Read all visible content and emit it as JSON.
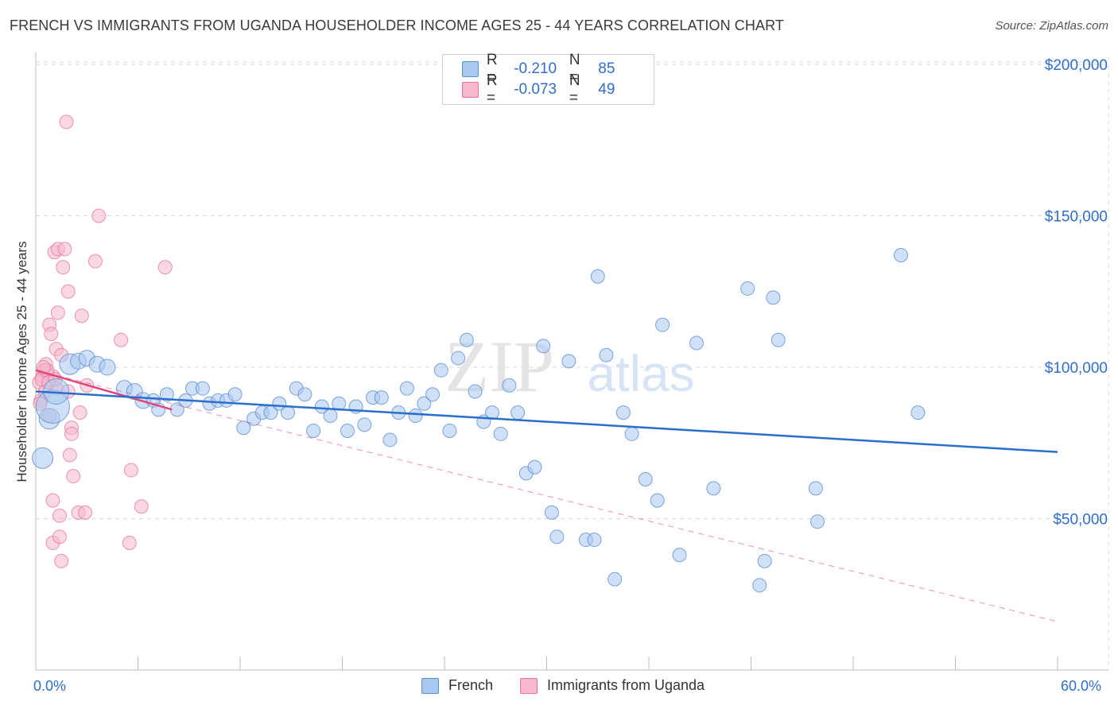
{
  "header": {
    "title": "FRENCH VS IMMIGRANTS FROM UGANDA HOUSEHOLDER INCOME AGES 25 - 44 YEARS CORRELATION CHART",
    "source": "Source: ZipAtlas.com"
  },
  "watermark": {
    "zip": "ZIP",
    "atlas": "atlas"
  },
  "legend_top": {
    "rows": [
      {
        "r_label": "R =",
        "r_value": "-0.210",
        "n_label": "N =",
        "n_value": "85",
        "color": "#a9c8f0"
      },
      {
        "r_label": "R =",
        "r_value": "-0.073",
        "n_label": "N =",
        "n_value": "49",
        "color": "#f6b8cb"
      }
    ]
  },
  "legend_bottom": {
    "french": "French",
    "uganda": "Immigrants from Uganda"
  },
  "axes": {
    "x_min_label": "0.0%",
    "x_max_label": "60.0%",
    "y_title": "Householder Income Ages 25 - 44 years"
  },
  "colors": {
    "blue_fill": "#a9c8f0",
    "blue_stroke": "#5b8fd4",
    "blue_line": "#2b6fce",
    "pink_fill": "#f6b8cb",
    "pink_stroke": "#e67399",
    "pink_line": "#e0477a",
    "grid": "#d8d8d8",
    "tick_label": "#2f6fc9"
  },
  "chart_data": {
    "type": "scatter",
    "title": "FRENCH VS IMMIGRANTS FROM UGANDA HOUSEHOLDER INCOME AGES 25 - 44 YEARS CORRELATION CHART",
    "xlabel": "",
    "ylabel": "Householder Income Ages 25 - 44 years",
    "xlim": [
      0,
      60
    ],
    "ylim": [
      0,
      210000
    ],
    "y_ticks": [
      {
        "value": 50000,
        "label": "$50,000"
      },
      {
        "value": 100000,
        "label": "$100,000"
      },
      {
        "value": 150000,
        "label": "$150,000"
      },
      {
        "value": 200000,
        "label": "$200,000"
      }
    ],
    "x_tick_values": [
      0,
      6,
      12,
      18,
      24,
      30,
      36,
      42,
      48,
      54,
      60
    ],
    "grid": true,
    "series": [
      {
        "name": "French",
        "r": -0.21,
        "n": 85,
        "trend": {
          "x0": 0,
          "y0": 92000,
          "x1": 60,
          "y1": 72000,
          "style": "solid"
        },
        "points": [
          [
            0.4,
            70000,
            3
          ],
          [
            0.8,
            83000,
            3
          ],
          [
            1.0,
            87000,
            5
          ],
          [
            1.2,
            92000,
            4
          ],
          [
            2.0,
            101000,
            3
          ],
          [
            2.5,
            102000,
            2
          ],
          [
            3.0,
            103000,
            2
          ],
          [
            3.6,
            101000,
            2
          ],
          [
            4.2,
            100000,
            2
          ],
          [
            5.2,
            93000,
            2
          ],
          [
            5.8,
            92000,
            2
          ],
          [
            6.3,
            89000,
            2
          ],
          [
            6.9,
            89000,
            1
          ],
          [
            7.2,
            86000,
            1
          ],
          [
            7.7,
            91000,
            1
          ],
          [
            8.3,
            86000,
            1
          ],
          [
            8.8,
            89000,
            1
          ],
          [
            9.2,
            93000,
            1
          ],
          [
            9.8,
            93000,
            1
          ],
          [
            10.2,
            88000,
            1
          ],
          [
            10.7,
            89000,
            1
          ],
          [
            11.2,
            89000,
            1
          ],
          [
            11.7,
            91000,
            1
          ],
          [
            12.2,
            80000,
            1
          ],
          [
            12.8,
            83000,
            1
          ],
          [
            13.3,
            85000,
            1
          ],
          [
            13.8,
            85000,
            1
          ],
          [
            14.3,
            88000,
            1
          ],
          [
            14.8,
            85000,
            1
          ],
          [
            15.3,
            93000,
            1
          ],
          [
            15.8,
            91000,
            1
          ],
          [
            16.3,
            79000,
            1
          ],
          [
            16.8,
            87000,
            1
          ],
          [
            17.3,
            84000,
            1
          ],
          [
            17.8,
            88000,
            1
          ],
          [
            18.3,
            79000,
            1
          ],
          [
            18.8,
            87000,
            1
          ],
          [
            19.3,
            81000,
            1
          ],
          [
            19.8,
            90000,
            1
          ],
          [
            20.3,
            90000,
            1
          ],
          [
            20.8,
            76000,
            1
          ],
          [
            21.3,
            85000,
            1
          ],
          [
            21.8,
            93000,
            1
          ],
          [
            22.3,
            84000,
            1
          ],
          [
            22.8,
            88000,
            1
          ],
          [
            23.3,
            91000,
            1
          ],
          [
            23.8,
            99000,
            1
          ],
          [
            24.3,
            79000,
            1
          ],
          [
            24.8,
            103000,
            1
          ],
          [
            25.3,
            109000,
            1
          ],
          [
            25.8,
            92000,
            1
          ],
          [
            26.3,
            82000,
            1
          ],
          [
            26.8,
            85000,
            1
          ],
          [
            27.3,
            78000,
            1
          ],
          [
            27.8,
            94000,
            1
          ],
          [
            28.3,
            85000,
            1
          ],
          [
            28.8,
            65000,
            1
          ],
          [
            29.3,
            67000,
            1
          ],
          [
            29.8,
            107000,
            1
          ],
          [
            30.3,
            52000,
            1
          ],
          [
            30.6,
            44000,
            1
          ],
          [
            31.3,
            102000,
            1
          ],
          [
            32.3,
            43000,
            1
          ],
          [
            32.8,
            43000,
            1
          ],
          [
            33.0,
            130000,
            1
          ],
          [
            33.5,
            104000,
            1
          ],
          [
            34.0,
            30000,
            1
          ],
          [
            34.5,
            85000,
            1
          ],
          [
            35.0,
            78000,
            1
          ],
          [
            35.8,
            63000,
            1
          ],
          [
            36.5,
            56000,
            1
          ],
          [
            36.8,
            114000,
            1
          ],
          [
            37.8,
            38000,
            1
          ],
          [
            38.8,
            108000,
            1
          ],
          [
            39.8,
            60000,
            1
          ],
          [
            41.8,
            126000,
            1
          ],
          [
            42.5,
            28000,
            1
          ],
          [
            42.8,
            36000,
            1
          ],
          [
            43.3,
            123000,
            1
          ],
          [
            43.6,
            109000,
            1
          ],
          [
            45.8,
            60000,
            1
          ],
          [
            45.9,
            49000,
            1
          ],
          [
            50.8,
            137000,
            1
          ],
          [
            51.8,
            85000,
            1
          ]
        ]
      },
      {
        "name": "Immigrants from Uganda",
        "r": -0.073,
        "n": 49,
        "trend_solid": {
          "x0": 0,
          "y0": 99000,
          "x1": 8,
          "y1": 86000,
          "style": "solid"
        },
        "trend_dashed": {
          "x0": 0,
          "y0": 99000,
          "x1": 60,
          "y1": 16000,
          "style": "dashed"
        },
        "points": [
          [
            0.2,
            95000,
            1
          ],
          [
            0.3,
            89000,
            1
          ],
          [
            0.4,
            97000,
            1
          ],
          [
            0.5,
            99000,
            1
          ],
          [
            0.6,
            101000,
            1
          ],
          [
            0.7,
            98000,
            1
          ],
          [
            0.8,
            84000,
            1
          ],
          [
            0.8,
            114000,
            1
          ],
          [
            0.9,
            111000,
            1
          ],
          [
            1.0,
            97000,
            1
          ],
          [
            1.0,
            56000,
            1
          ],
          [
            1.0,
            42000,
            1
          ],
          [
            1.1,
            138000,
            1
          ],
          [
            1.2,
            93000,
            1
          ],
          [
            1.2,
            106000,
            1
          ],
          [
            1.3,
            118000,
            1
          ],
          [
            1.3,
            139000,
            1
          ],
          [
            1.4,
            51000,
            1
          ],
          [
            1.4,
            44000,
            1
          ],
          [
            1.5,
            36000,
            1
          ],
          [
            1.5,
            104000,
            1
          ],
          [
            1.6,
            133000,
            1
          ],
          [
            1.7,
            139000,
            1
          ],
          [
            1.8,
            181000,
            1
          ],
          [
            1.9,
            125000,
            1
          ],
          [
            1.9,
            92000,
            1
          ],
          [
            2.0,
            71000,
            1
          ],
          [
            2.1,
            80000,
            1
          ],
          [
            2.1,
            78000,
            1
          ],
          [
            2.2,
            64000,
            1
          ],
          [
            2.5,
            52000,
            1
          ],
          [
            2.6,
            85000,
            1
          ],
          [
            2.7,
            117000,
            1
          ],
          [
            2.9,
            52000,
            1
          ],
          [
            3.0,
            94000,
            1
          ],
          [
            3.5,
            135000,
            1
          ],
          [
            3.7,
            150000,
            1
          ],
          [
            5.0,
            109000,
            1
          ],
          [
            5.5,
            42000,
            1
          ],
          [
            5.6,
            66000,
            1
          ],
          [
            6.2,
            54000,
            1
          ],
          [
            7.6,
            133000,
            1
          ],
          [
            0.35,
            96000,
            1
          ],
          [
            0.55,
            92000,
            1
          ],
          [
            0.65,
            99000,
            1
          ],
          [
            0.75,
            95000,
            1
          ],
          [
            0.45,
            100000,
            1
          ],
          [
            1.15,
            96000,
            1
          ],
          [
            0.25,
            88000,
            1
          ]
        ]
      }
    ]
  }
}
